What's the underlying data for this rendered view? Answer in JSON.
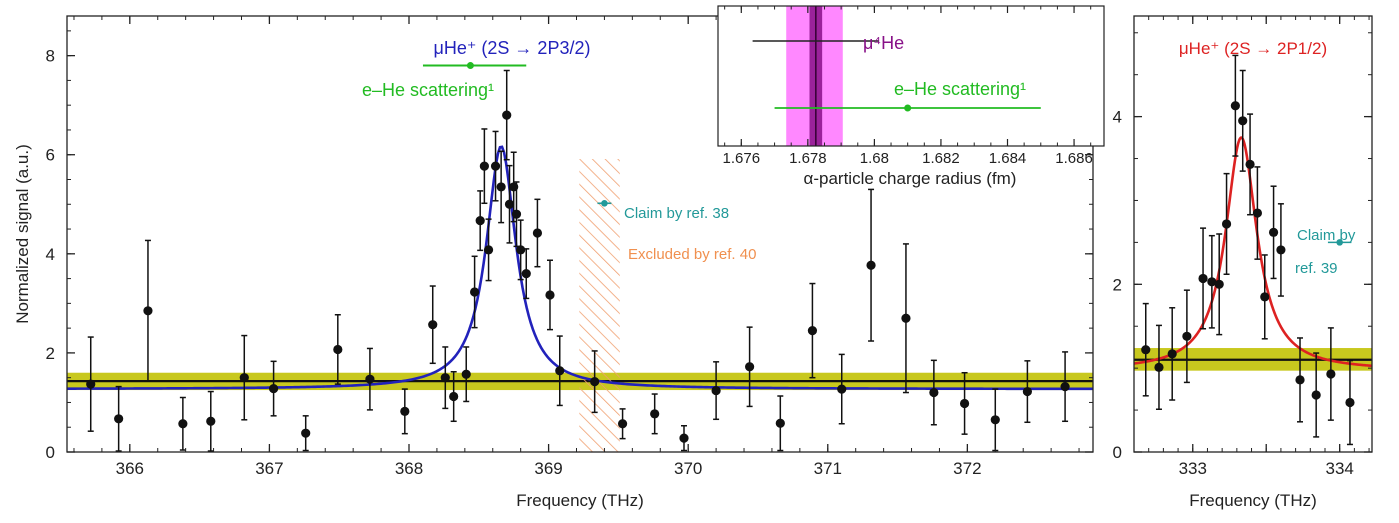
{
  "chart_data": [
    {
      "panel": "left",
      "type": "scatter",
      "xlabel": "Frequency (THz)",
      "ylabel": "Normalized signal (a.u.)",
      "xlim": [
        365.55,
        372.9
      ],
      "ylim": [
        0,
        8.8
      ],
      "xticks": [
        366,
        367,
        368,
        369,
        370,
        371,
        372
      ],
      "yticks": [
        0,
        2,
        4,
        6,
        8
      ],
      "points": [
        {
          "x": 365.72,
          "y": 1.37,
          "err": 0.95
        },
        {
          "x": 365.92,
          "y": 0.67,
          "err": 0.65
        },
        {
          "x": 366.13,
          "y": 2.85,
          "err": 1.42
        },
        {
          "x": 366.38,
          "y": 0.57,
          "err": 0.53
        },
        {
          "x": 366.58,
          "y": 0.62,
          "err": 0.6
        },
        {
          "x": 366.82,
          "y": 1.5,
          "err": 0.85
        },
        {
          "x": 367.03,
          "y": 1.28,
          "err": 0.55
        },
        {
          "x": 367.26,
          "y": 0.38,
          "err": 0.35
        },
        {
          "x": 367.49,
          "y": 2.07,
          "err": 0.7
        },
        {
          "x": 367.72,
          "y": 1.47,
          "err": 0.62
        },
        {
          "x": 367.97,
          "y": 0.82,
          "err": 0.45
        },
        {
          "x": 368.17,
          "y": 2.57,
          "err": 0.78
        },
        {
          "x": 368.26,
          "y": 1.5,
          "err": 0.62
        },
        {
          "x": 368.32,
          "y": 1.12,
          "err": 0.5
        },
        {
          "x": 368.41,
          "y": 1.57,
          "err": 0.55
        },
        {
          "x": 368.47,
          "y": 3.23,
          "err": 0.72
        },
        {
          "x": 368.51,
          "y": 4.67,
          "err": 0.6
        },
        {
          "x": 368.54,
          "y": 5.77,
          "err": 0.75
        },
        {
          "x": 368.57,
          "y": 4.08,
          "err": 0.62
        },
        {
          "x": 368.62,
          "y": 5.77,
          "err": 0.7
        },
        {
          "x": 368.66,
          "y": 5.35,
          "err": 0.72
        },
        {
          "x": 368.7,
          "y": 6.8,
          "err": 0.9
        },
        {
          "x": 368.72,
          "y": 5.0,
          "err": 0.78
        },
        {
          "x": 368.75,
          "y": 5.35,
          "err": 0.7
        },
        {
          "x": 368.77,
          "y": 4.8,
          "err": 0.65
        },
        {
          "x": 368.8,
          "y": 4.08,
          "err": 0.6
        },
        {
          "x": 368.84,
          "y": 3.6,
          "err": 0.5
        },
        {
          "x": 368.92,
          "y": 4.42,
          "err": 0.68
        },
        {
          "x": 369.01,
          "y": 3.17,
          "err": 0.7
        },
        {
          "x": 369.08,
          "y": 1.64,
          "err": 0.7
        },
        {
          "x": 369.33,
          "y": 1.42,
          "err": 0.62
        },
        {
          "x": 369.53,
          "y": 0.57,
          "err": 0.3
        },
        {
          "x": 369.76,
          "y": 0.77,
          "err": 0.4
        },
        {
          "x": 369.97,
          "y": 0.28,
          "err": 0.25
        },
        {
          "x": 370.2,
          "y": 1.24,
          "err": 0.58
        },
        {
          "x": 370.44,
          "y": 1.72,
          "err": 0.8
        },
        {
          "x": 370.66,
          "y": 0.58,
          "err": 0.55
        },
        {
          "x": 370.89,
          "y": 2.45,
          "err": 0.95
        },
        {
          "x": 371.1,
          "y": 1.27,
          "err": 0.7
        },
        {
          "x": 371.31,
          "y": 3.77,
          "err": 1.53
        },
        {
          "x": 371.56,
          "y": 2.7,
          "err": 1.5
        },
        {
          "x": 371.76,
          "y": 1.2,
          "err": 0.65
        },
        {
          "x": 371.98,
          "y": 0.98,
          "err": 0.62
        },
        {
          "x": 372.2,
          "y": 0.65,
          "err": 0.62
        },
        {
          "x": 372.43,
          "y": 1.22,
          "err": 0.62
        },
        {
          "x": 372.7,
          "y": 1.32,
          "err": 0.7
        }
      ],
      "fit": {
        "name": "Lorentzian fit",
        "center": 368.66,
        "amplitude": 4.9,
        "hwhm": 0.13,
        "baseline": 1.27,
        "color": "#2222bb"
      },
      "background": {
        "level": 1.43,
        "band": [
          1.25,
          1.6
        ],
        "color": "#c8c81e"
      },
      "annotations": {
        "transition_label": "μHe⁺ (2S → 2P3/2)",
        "transition_color": "#2222bb",
        "scattering_label": "e–He scattering¹",
        "scattering": {
          "x": 368.44,
          "xmin": 368.1,
          "xmax": 368.84,
          "y": 7.8
        },
        "scattering_color": "#22bb22",
        "claim_label": "Claim by ref. 38",
        "claim": {
          "x": 369.4,
          "xerr": 0.05,
          "y": 5.02
        },
        "claim_color": "#229999",
        "excluded_label": "Excluded by ref. 40",
        "excluded_range": [
          369.22,
          369.51
        ],
        "excluded_color": "#f0a070"
      }
    },
    {
      "panel": "inset",
      "type": "scatter",
      "xlabel": "α-particle charge radius (fm)",
      "xlim": [
        1.6753,
        1.6869
      ],
      "xticks": [
        1.676,
        1.678,
        1.68,
        1.682,
        1.684,
        1.686
      ],
      "xtick_labels": [
        "1.676",
        "1.678",
        "1.68",
        "1.682",
        "1.684",
        "1.686"
      ],
      "muonic": {
        "label": "μ⁴He",
        "value": 1.67824,
        "err": 0.0019,
        "band": [
          1.67735,
          1.67905
        ],
        "core": [
          1.67805,
          1.67843
        ],
        "color": "#881188",
        "band_color": "#ff88ff"
      },
      "scattering": {
        "label": "e–He scattering¹",
        "value": 1.681,
        "err": 0.004,
        "color": "#22bb22"
      }
    },
    {
      "panel": "right",
      "type": "scatter",
      "xlabel": "Frequency (THz)",
      "xlim": [
        332.6,
        334.22
      ],
      "ylim": [
        0,
        5.2
      ],
      "xticks": [
        333,
        333.5,
        334
      ],
      "xtick_labels": [
        "333",
        "",
        "334"
      ],
      "yticks": [
        0,
        2,
        4
      ],
      "points": [
        {
          "x": 332.68,
          "y": 1.22,
          "err": 0.55
        },
        {
          "x": 332.77,
          "y": 1.01,
          "err": 0.5
        },
        {
          "x": 332.86,
          "y": 1.17,
          "err": 0.55
        },
        {
          "x": 332.96,
          "y": 1.38,
          "err": 0.55
        },
        {
          "x": 333.07,
          "y": 2.07,
          "err": 0.6
        },
        {
          "x": 333.13,
          "y": 2.03,
          "err": 0.55
        },
        {
          "x": 333.18,
          "y": 2.0,
          "err": 0.6
        },
        {
          "x": 333.23,
          "y": 2.72,
          "err": 0.6
        },
        {
          "x": 333.29,
          "y": 4.13,
          "err": 0.6
        },
        {
          "x": 333.34,
          "y": 3.95,
          "err": 0.6
        },
        {
          "x": 333.39,
          "y": 3.43,
          "err": 0.6
        },
        {
          "x": 333.44,
          "y": 2.85,
          "err": 0.55
        },
        {
          "x": 333.49,
          "y": 1.85,
          "err": 0.5
        },
        {
          "x": 333.55,
          "y": 2.62,
          "err": 0.55
        },
        {
          "x": 333.6,
          "y": 2.41,
          "err": 0.55
        },
        {
          "x": 333.73,
          "y": 0.86,
          "err": 0.5
        },
        {
          "x": 333.84,
          "y": 0.68,
          "err": 0.5
        },
        {
          "x": 333.94,
          "y": 0.93,
          "err": 0.55
        },
        {
          "x": 334.07,
          "y": 0.59,
          "err": 0.5
        }
      ],
      "fit": {
        "name": "Lorentzian fit",
        "center": 333.33,
        "amplitude": 2.78,
        "hwhm": 0.13,
        "baseline": 0.97,
        "color": "#dd2222"
      },
      "background": {
        "level": 1.1,
        "band": [
          0.97,
          1.24
        ],
        "color": "#c8c81e"
      },
      "annotations": {
        "transition_label": "μHe⁺ (2S → 2P1/2)",
        "transition_color": "#dd2222",
        "claim_label_line1": "Claim by",
        "claim_label_line2": "ref. 39",
        "claim": {
          "x": 334.0,
          "xerr": 0.08,
          "y": 2.5
        },
        "claim_color": "#229999"
      }
    }
  ]
}
